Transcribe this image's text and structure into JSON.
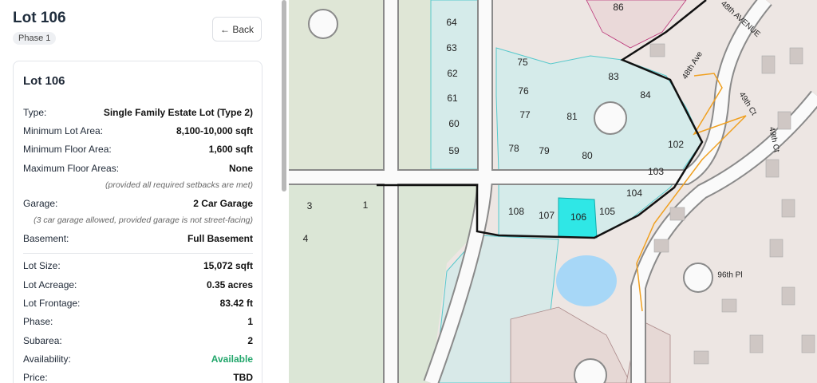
{
  "header": {
    "title": "Lot 106",
    "badge": "Phase 1"
  },
  "back_button": "← Back",
  "card": {
    "title": "Lot 106",
    "rows": [
      {
        "label": "Type:",
        "value": "Single Family Estate Lot (Type 2)"
      },
      {
        "label": "Minimum Lot Area:",
        "value": "8,100-10,000 sqft"
      },
      {
        "label": "Minimum Floor Area:",
        "value": "1,600 sqft"
      },
      {
        "label": "Maximum Floor Areas:",
        "value": "None",
        "note": "(provided all required setbacks are met)"
      },
      {
        "label": "Garage:",
        "value": "2 Car Garage",
        "note": "(3 car garage allowed, provided garage is not street-facing)"
      },
      {
        "label": "Basement:",
        "value": "Full Basement",
        "divider": true
      },
      {
        "label": "Lot Size:",
        "value": "15,072 sqft"
      },
      {
        "label": "Lot Acreage:",
        "value": "0.35 acres"
      },
      {
        "label": "Lot Frontage:",
        "value": "83.42 ft"
      },
      {
        "label": "Phase:",
        "value": "1"
      },
      {
        "label": "Subarea:",
        "value": "2"
      },
      {
        "label": "Availability:",
        "value": "Available",
        "value_color": "#22a66b"
      },
      {
        "label": "Price:",
        "value": "TBD"
      }
    ]
  },
  "map": {
    "lot_labels": [
      "64",
      "63",
      "62",
      "61",
      "60",
      "59",
      "75",
      "76",
      "77",
      "78",
      "79",
      "80",
      "81",
      "83",
      "84",
      "86",
      "102",
      "103",
      "104",
      "105",
      "106",
      "107",
      "108",
      "3",
      "1",
      "4"
    ],
    "street_labels": [
      "48th AVENUE",
      "48th Ave",
      "49th Ct",
      "49th Ct",
      "96th Pl"
    ]
  }
}
